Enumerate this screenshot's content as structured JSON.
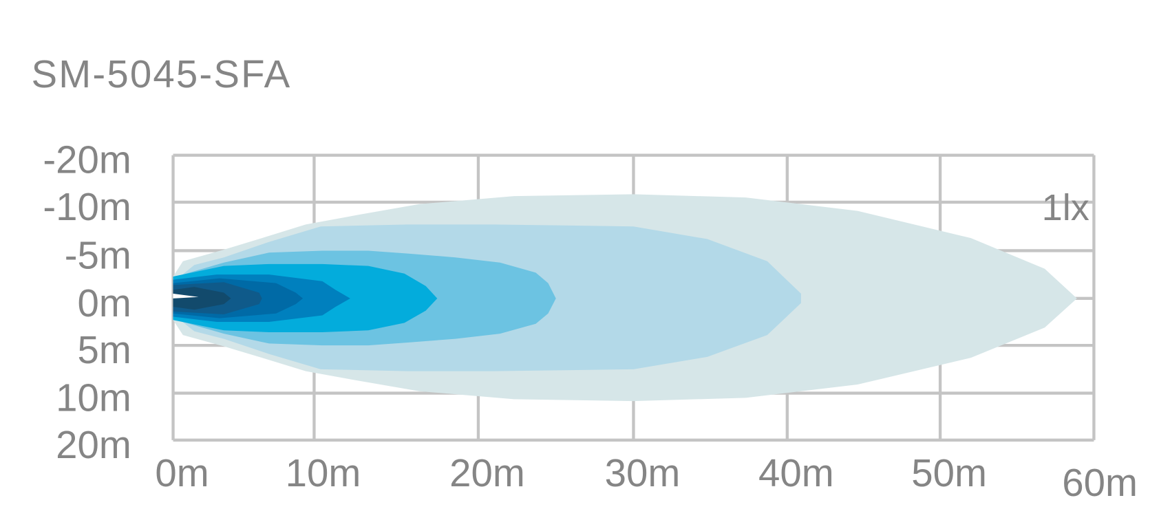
{
  "chart_data": {
    "type": "area",
    "title": "SM-5045-SFA",
    "annotation": "1lx",
    "grid": true,
    "xlabel": "",
    "ylabel": "",
    "x_ticks": [
      0,
      10,
      20,
      30,
      40,
      50,
      60
    ],
    "x_tick_labels": [
      "0m",
      "10m",
      "20m",
      "30m",
      "40m",
      "50m",
      "60m"
    ],
    "y_ticks": [
      -20,
      -10,
      -5,
      0,
      5,
      10,
      20
    ],
    "y_tick_labels": [
      "-20m",
      "-10m",
      "-5m",
      "0m",
      "5m",
      "10m",
      "20m"
    ],
    "xlim": [
      0,
      60
    ],
    "ylim": [
      -20,
      20
    ],
    "grid_color": "#c4c4c4",
    "text_color": "#858585",
    "contours": [
      {
        "color": "#d6e6e8",
        "points": [
          [
            0,
            -2.3
          ],
          [
            0.7,
            -3.9
          ],
          [
            3.6,
            -5.1
          ],
          [
            6.3,
            -6.3
          ],
          [
            9.4,
            -7.7
          ],
          [
            12.7,
            -8.7
          ],
          [
            16.4,
            -9.8
          ],
          [
            22.3,
            -11.3
          ],
          [
            30,
            -11.7
          ],
          [
            37.3,
            -11
          ],
          [
            44.6,
            -9.1
          ],
          [
            52,
            -6.3
          ],
          [
            56.8,
            -3.1
          ],
          [
            58.9,
            0
          ]
        ]
      },
      {
        "color": "#b3d9e8",
        "points": [
          [
            0,
            -1.7
          ],
          [
            1.5,
            -3.5
          ],
          [
            3.6,
            -4.3
          ],
          [
            6.8,
            -5.9
          ],
          [
            10.4,
            -7.5
          ],
          [
            15.7,
            -7.7
          ],
          [
            21,
            -7.7
          ],
          [
            25.6,
            -7.6
          ],
          [
            30,
            -7.5
          ],
          [
            34.8,
            -6.2
          ],
          [
            38.7,
            -3.9
          ],
          [
            40.9,
            -0.5
          ],
          [
            40.9,
            0
          ]
        ]
      },
      {
        "color": "#6cc3e2",
        "points": [
          [
            0,
            -2.2
          ],
          [
            3.6,
            -3.75
          ],
          [
            6.8,
            -4.8
          ],
          [
            10.5,
            -5
          ],
          [
            13.3,
            -5
          ],
          [
            15.7,
            -4.7
          ],
          [
            18.6,
            -4.3
          ],
          [
            21.4,
            -3.75
          ],
          [
            23.7,
            -2.7
          ],
          [
            24.5,
            -1.6
          ],
          [
            25,
            0
          ]
        ]
      },
      {
        "color": "#03acdc",
        "points": [
          [
            0,
            -2.3
          ],
          [
            3.6,
            -3.4
          ],
          [
            6.8,
            -3.6
          ],
          [
            10.5,
            -3.6
          ],
          [
            13.3,
            -3.4
          ],
          [
            15.5,
            -2.6
          ],
          [
            16.8,
            -1.3
          ],
          [
            17.5,
            0
          ]
        ]
      },
      {
        "color": "#0080be",
        "points": [
          [
            0,
            -1.95
          ],
          [
            3.1,
            -2.5
          ],
          [
            6.8,
            -2.5
          ],
          [
            10.5,
            -1.8
          ],
          [
            11.3,
            -0.9
          ],
          [
            12.2,
            0
          ]
        ]
      },
      {
        "color": "#006aa6",
        "points": [
          [
            0,
            -1.6
          ],
          [
            3.3,
            -2.1
          ],
          [
            7.3,
            -1.6
          ],
          [
            8.7,
            -0.6
          ],
          [
            9.2,
            0
          ]
        ]
      },
      {
        "color": "#0f5a8a",
        "points": [
          [
            0,
            -1.4
          ],
          [
            3.6,
            -1.7
          ],
          [
            6.1,
            -0.6
          ],
          [
            6.3,
            0
          ]
        ]
      },
      {
        "color": "#124a6c",
        "points": [
          [
            0,
            -0.9
          ],
          [
            1.5,
            -1.2
          ],
          [
            3.6,
            -0.6
          ],
          [
            4.1,
            0
          ]
        ]
      }
    ]
  }
}
